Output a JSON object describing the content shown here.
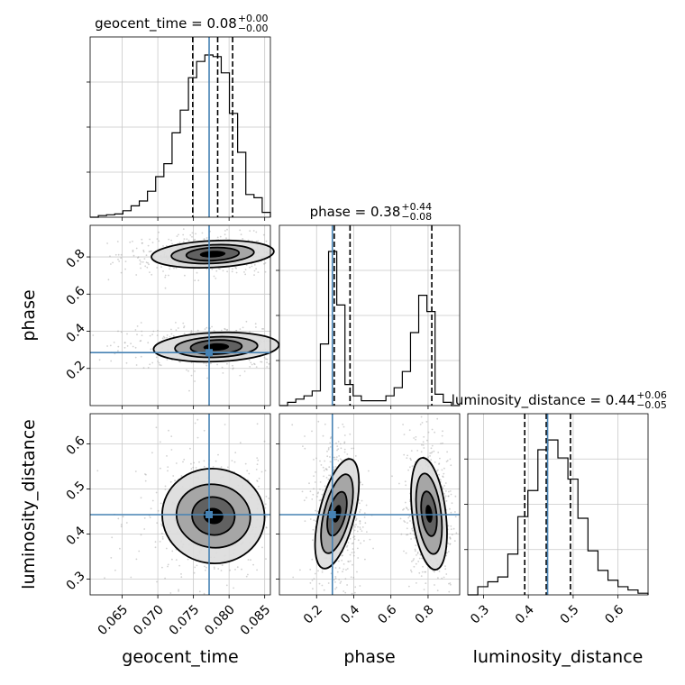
{
  "chart_data": {
    "type": "corner",
    "parameters": [
      "geocent_time",
      "phase",
      "luminosity_distance"
    ],
    "axis_labels": [
      "geocent_time",
      "phase",
      "luminosity_distance"
    ],
    "ranges": [
      [
        0.0605,
        0.0858
      ],
      [
        0.0,
        0.97
      ],
      [
        0.265,
        0.667
      ]
    ],
    "ticks": [
      [
        "0.065",
        "0.070",
        "0.075",
        "0.080",
        "0.085"
      ],
      [
        "0.2",
        "0.4",
        "0.6",
        "0.8"
      ],
      [
        "0.3",
        "0.4",
        "0.5",
        "0.6"
      ]
    ],
    "tick_values": [
      [
        0.065,
        0.07,
        0.075,
        0.08,
        0.085
      ],
      [
        0.2,
        0.4,
        0.6,
        0.8
      ],
      [
        0.3,
        0.4,
        0.5,
        0.6
      ]
    ],
    "titles": [
      {
        "param": "geocent_time",
        "median": "0.08",
        "plus": "+0.00",
        "minus": "−0.00"
      },
      {
        "param": "phase",
        "median": "0.38",
        "plus": "+0.44",
        "minus": "−0.08"
      },
      {
        "param": "luminosity_distance",
        "median": "0.44",
        "plus": "+0.06",
        "minus": "−0.05"
      }
    ],
    "truths": [
      0.0772,
      0.285,
      0.443
    ],
    "quantiles": [
      [
        0.0749,
        0.0784,
        0.0805
      ],
      [
        0.295,
        0.38,
        0.82
      ],
      [
        0.392,
        0.44,
        0.494
      ]
    ],
    "histograms": [
      {
        "edges_min": 0.0605,
        "edges_max": 0.0858,
        "counts": [
          0.0,
          0.01,
          0.015,
          0.02,
          0.04,
          0.07,
          0.1,
          0.16,
          0.25,
          0.33,
          0.52,
          0.66,
          0.86,
          0.96,
          1.0,
          0.99,
          0.89,
          0.64,
          0.4,
          0.14,
          0.12,
          0.03
        ]
      },
      {
        "edges_min": 0.0,
        "edges_max": 0.97,
        "counts": [
          0.0,
          0.02,
          0.04,
          0.06,
          0.09,
          0.38,
          0.95,
          0.62,
          0.13,
          0.06,
          0.03,
          0.03,
          0.03,
          0.06,
          0.11,
          0.21,
          0.45,
          0.68,
          0.58,
          0.07,
          0.02,
          0.0
        ]
      },
      {
        "edges_min": 0.265,
        "edges_max": 0.667,
        "counts": [
          0.0,
          0.05,
          0.08,
          0.11,
          0.25,
          0.48,
          0.64,
          0.89,
          0.95,
          0.84,
          0.71,
          0.47,
          0.27,
          0.15,
          0.09,
          0.05,
          0.03,
          0.01
        ]
      }
    ],
    "contours": {
      "phase_vs_geocent_time": [
        {
          "cx": 0.0777,
          "cy": 0.815,
          "levels": [
            {
              "rx": 0.0018,
              "ry": 0.018
            },
            {
              "rx": 0.0037,
              "ry": 0.035
            },
            {
              "rx": 0.0058,
              "ry": 0.05
            },
            {
              "rx": 0.0086,
              "ry": 0.072
            }
          ],
          "slope": 5.2
        },
        {
          "cx": 0.0782,
          "cy": 0.315,
          "levels": [
            {
              "rx": 0.0018,
              "ry": 0.02
            },
            {
              "rx": 0.0036,
              "ry": 0.038
            },
            {
              "rx": 0.0058,
              "ry": 0.055
            },
            {
              "rx": 0.0088,
              "ry": 0.078
            }
          ],
          "slope": 4.0
        }
      ],
      "luminosity_distance_vs_geocent_time": [
        {
          "cx": 0.0778,
          "cy": 0.44,
          "levels": [
            {
              "rx": 0.0014,
              "ry": 0.018
            },
            {
              "rx": 0.003,
              "ry": 0.042
            },
            {
              "rx": 0.0052,
              "ry": 0.07
            },
            {
              "rx": 0.0072,
              "ry": 0.105
            }
          ],
          "slope": -7.5
        }
      ],
      "luminosity_distance_vs_phase": [
        {
          "cx": 0.31,
          "cy": 0.445,
          "levels": [
            {
              "rx": 0.02,
              "ry": 0.02
            },
            {
              "rx": 0.045,
              "ry": 0.05
            },
            {
              "rx": 0.07,
              "ry": 0.09
            },
            {
              "rx": 0.095,
              "ry": 0.125
            }
          ],
          "slope": -0.35
        },
        {
          "cx": 0.805,
          "cy": 0.445,
          "levels": [
            {
              "rx": 0.018,
              "ry": 0.02
            },
            {
              "rx": 0.04,
              "ry": 0.05
            },
            {
              "rx": 0.065,
              "ry": 0.09
            },
            {
              "rx": 0.09,
              "ry": 0.125
            }
          ],
          "slope": 0.15
        }
      ]
    },
    "colors": {
      "truth": "#4682b4",
      "hist": "#000000",
      "scatter": "#9a9a9a",
      "grid": "#c8c8c8",
      "fill_levels": [
        "#000000",
        "#5a5a5a",
        "#a0a0a0",
        "#dcdcdc"
      ]
    },
    "grid": true
  }
}
